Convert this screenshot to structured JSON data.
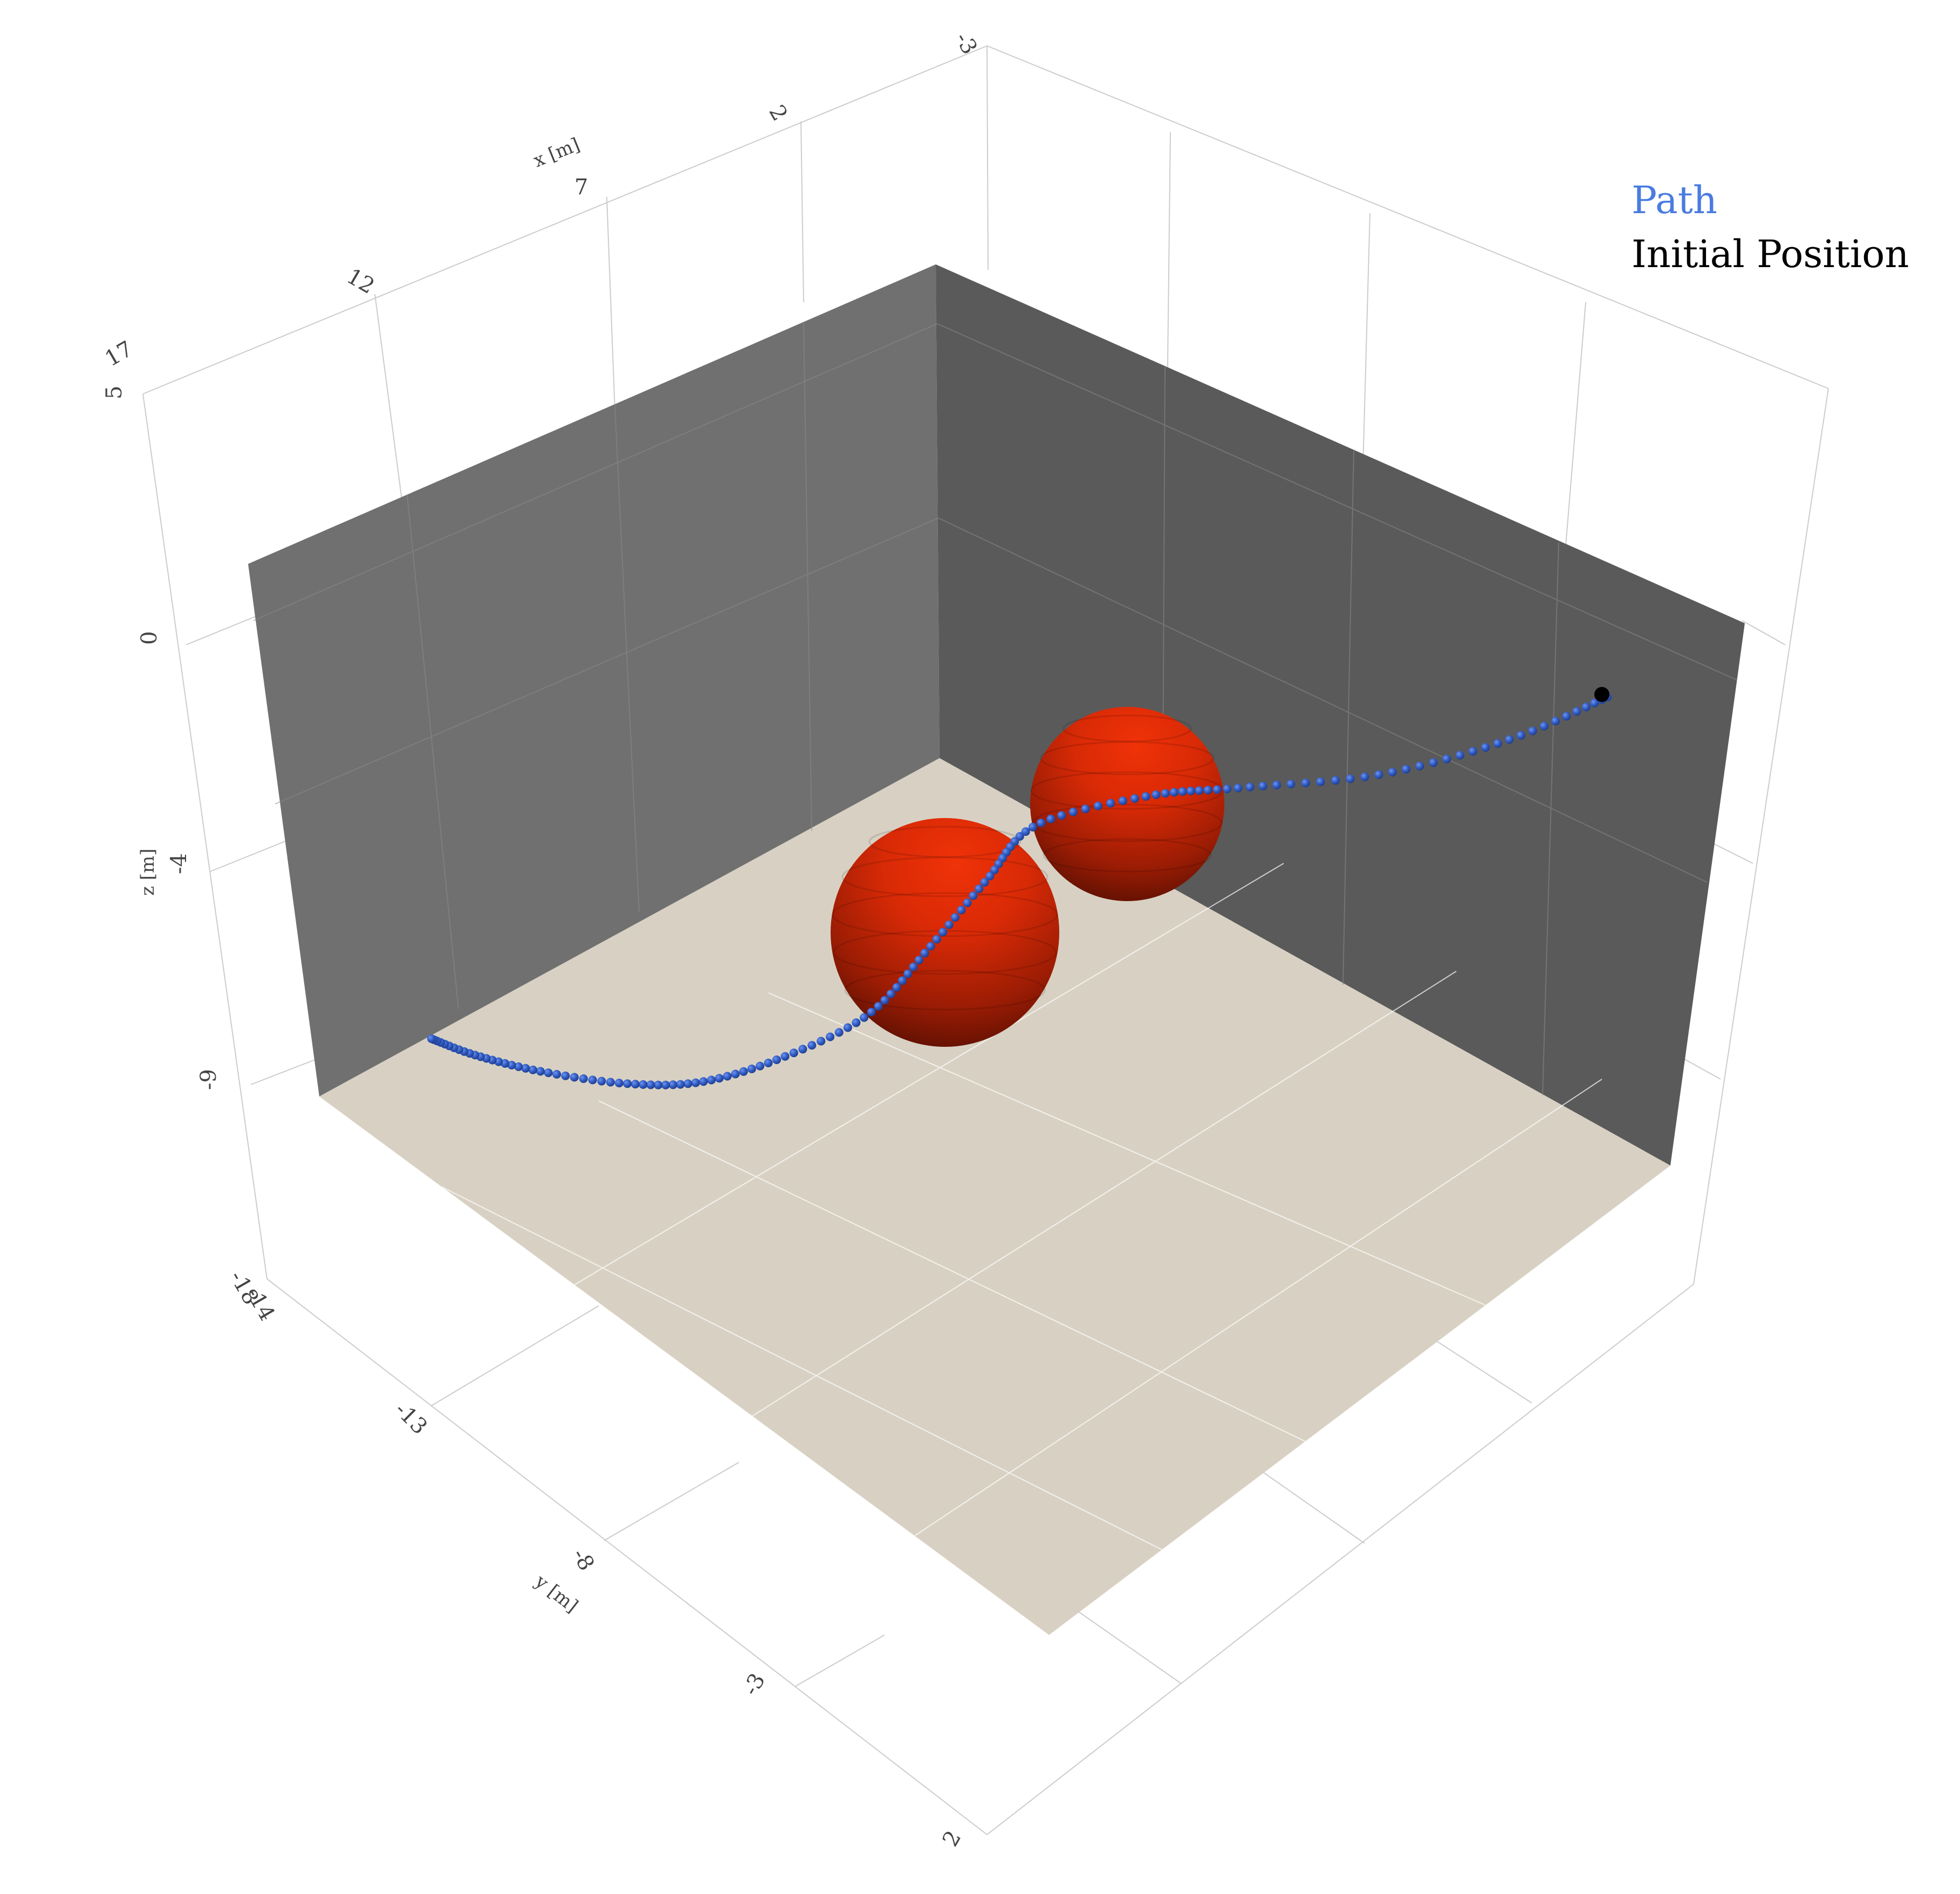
{
  "chart_data": {
    "type": "scatter3d",
    "axes": {
      "x": {
        "label": "x [m]",
        "ticks": [
          "-3",
          "2",
          "7",
          "12",
          "17"
        ]
      },
      "y": {
        "label": "y [m]",
        "ticks": [
          "-18",
          "-13",
          "-8",
          "-3",
          "2"
        ]
      },
      "z": {
        "label": "z [m]",
        "ticks": [
          "-14",
          "-9",
          "-4",
          "0",
          "5"
        ]
      }
    },
    "legend": {
      "placement": "top-right",
      "items": [
        {
          "label": "Path",
          "color": "#4a7be0"
        },
        {
          "label": "Initial Position",
          "color": "#000000"
        }
      ]
    },
    "series": [
      {
        "name": "Path",
        "color": "#3560c8",
        "marker": "sphere",
        "point_count": 140
      },
      {
        "name": "Initial Position",
        "color": "#000000",
        "marker": "sphere",
        "point_count": 1
      }
    ],
    "obstacles": [
      {
        "shape": "sphere",
        "color": "#e02a08"
      },
      {
        "shape": "sphere",
        "color": "#e02a08"
      }
    ],
    "scene": {
      "back_wall_left_color": "#707070",
      "back_wall_right_color": "#5a5a5a",
      "floor_color": "#d8d1c3",
      "grid": true
    }
  }
}
